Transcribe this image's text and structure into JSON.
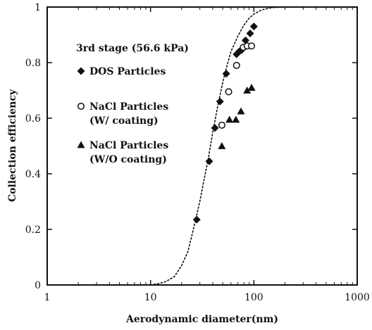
{
  "chart_data": {
    "type": "scatter",
    "title": "3rd stage (56.6 kPa)",
    "xlabel": "Aerodynamic diameter(nm)",
    "ylabel": "Collection efficiency",
    "xscale": "log",
    "xlim": [
      1,
      1000
    ],
    "ylim": [
      0,
      1
    ],
    "x_ticks": [
      "1",
      "10",
      "100",
      "1000"
    ],
    "y_ticks": [
      "0",
      "0.2",
      "0.4",
      "0.6",
      "0.8",
      "1"
    ],
    "grid": false,
    "legend_placement": "top-left",
    "series": [
      {
        "name": "DOS Particles",
        "marker": "filled-diamond",
        "color": "#111111",
        "points": [
          [
            28,
            0.235
          ],
          [
            37,
            0.445
          ],
          [
            42,
            0.565
          ],
          [
            47,
            0.66
          ],
          [
            54,
            0.76
          ],
          [
            68,
            0.83
          ],
          [
            72,
            0.84
          ],
          [
            76,
            0.845
          ],
          [
            83,
            0.88
          ],
          [
            92,
            0.905
          ],
          [
            100,
            0.93
          ]
        ]
      },
      {
        "name": "NaCl Particles",
        "name_line2": "(W/ coating)",
        "marker": "open-circle",
        "color": "#111111",
        "points": [
          [
            49,
            0.575
          ],
          [
            57,
            0.695
          ],
          [
            68,
            0.79
          ],
          [
            79,
            0.855
          ],
          [
            86,
            0.86
          ],
          [
            95,
            0.86
          ]
        ]
      },
      {
        "name": "NaCl Particles",
        "name_line2": "(W/O coating)",
        "marker": "filled-triangle",
        "color": "#111111",
        "points": [
          [
            49,
            0.5
          ],
          [
            58,
            0.595
          ],
          [
            67,
            0.595
          ],
          [
            75,
            0.625
          ],
          [
            86,
            0.7
          ],
          [
            95,
            0.71
          ]
        ]
      }
    ],
    "fit_curve": {
      "style": "dotted",
      "color": "#111111",
      "points": [
        [
          10,
          0.0
        ],
        [
          12,
          0.005
        ],
        [
          14,
          0.012
        ],
        [
          17,
          0.03
        ],
        [
          20,
          0.07
        ],
        [
          23,
          0.12
        ],
        [
          26,
          0.2
        ],
        [
          30,
          0.3
        ],
        [
          33,
          0.38
        ],
        [
          36,
          0.45
        ],
        [
          40,
          0.55
        ],
        [
          45,
          0.65
        ],
        [
          50,
          0.73
        ],
        [
          55,
          0.79
        ],
        [
          60,
          0.84
        ],
        [
          70,
          0.895
        ],
        [
          80,
          0.935
        ],
        [
          90,
          0.96
        ],
        [
          100,
          0.975
        ],
        [
          120,
          0.99
        ],
        [
          150,
          0.998
        ],
        [
          200,
          1.0
        ]
      ]
    }
  }
}
